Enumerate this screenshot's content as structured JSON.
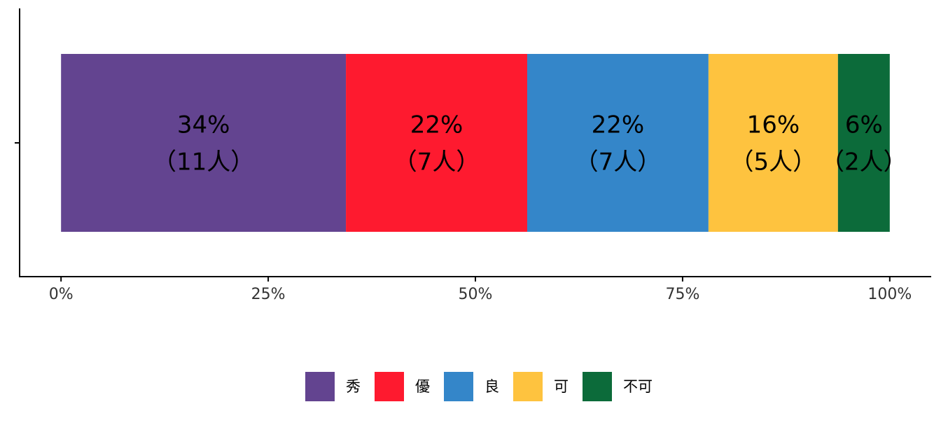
{
  "chart_data": {
    "type": "stacked_bar_horizontal",
    "categories": [
      null
    ],
    "series": [
      {
        "name": "秀",
        "color": "#634490",
        "values": [
          34.375
        ],
        "value_labels": [
          "34%"
        ],
        "counts": [
          "（11人）"
        ]
      },
      {
        "name": "優",
        "color": "#fe1a2f",
        "values": [
          21.875
        ],
        "value_labels": [
          "22%"
        ],
        "counts": [
          "（7人）"
        ]
      },
      {
        "name": "良",
        "color": "#3486c9",
        "values": [
          21.875
        ],
        "value_labels": [
          "22%"
        ],
        "counts": [
          "（7人）"
        ]
      },
      {
        "name": "可",
        "color": "#fec33f",
        "values": [
          15.625
        ],
        "value_labels": [
          "16%"
        ],
        "counts": [
          "（5人）"
        ]
      },
      {
        "name": "不可",
        "color": "#0c6b3a",
        "values": [
          6.25
        ],
        "value_labels": [
          "6%"
        ],
        "counts": [
          "（2人）"
        ]
      }
    ],
    "xlim": [
      -5,
      105
    ],
    "xticks": [
      {
        "value": 0,
        "label": "0%"
      },
      {
        "value": 25,
        "label": "25%"
      },
      {
        "value": 50,
        "label": "50%"
      },
      {
        "value": 75,
        "label": "75%"
      },
      {
        "value": 100,
        "label": "100%"
      }
    ],
    "legend": "bottom"
  }
}
